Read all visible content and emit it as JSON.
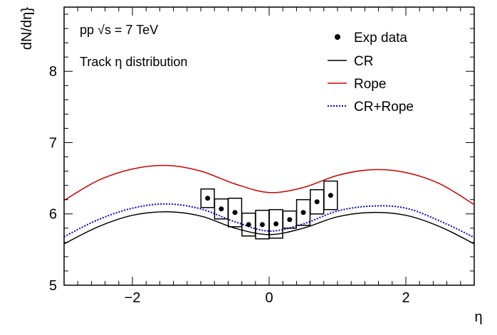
{
  "chart_data": {
    "type": "line",
    "annotations": {
      "line1": "pp  √s = 7 TeV",
      "line2": "Track η distribution"
    },
    "xlabel": "η",
    "ylabel": "dN/dη}",
    "xlim": [
      -3,
      3
    ],
    "ylim": [
      5,
      8.9
    ],
    "grid": false,
    "legend_position": "top-right",
    "x_tick_labels": [
      "−2",
      "0",
      "2"
    ],
    "y_tick_labels": [
      "5",
      "6",
      "7",
      "8"
    ],
    "series": [
      {
        "name": "CR",
        "color": "#000000",
        "style": "solid",
        "x": [
          -3.0,
          -2.5,
          -2.0,
          -1.5,
          -1.0,
          -0.5,
          0.0,
          0.5,
          1.0,
          1.5,
          2.0,
          2.5,
          3.0
        ],
        "y": [
          5.58,
          5.82,
          5.98,
          6.03,
          5.97,
          5.8,
          5.71,
          5.8,
          5.96,
          6.02,
          5.98,
          5.82,
          5.58
        ]
      },
      {
        "name": "Rope",
        "color": "#cc0000",
        "style": "solid",
        "x": [
          -3.0,
          -2.5,
          -2.0,
          -1.5,
          -1.0,
          -0.5,
          0.0,
          0.5,
          1.0,
          1.5,
          2.0,
          2.5,
          3.0
        ],
        "y": [
          6.19,
          6.47,
          6.63,
          6.68,
          6.6,
          6.42,
          6.3,
          6.37,
          6.54,
          6.62,
          6.58,
          6.42,
          6.13
        ]
      },
      {
        "name": "CR+Rope",
        "color": "#0000cc",
        "style": "dotted",
        "x": [
          -3.0,
          -2.5,
          -2.0,
          -1.5,
          -1.0,
          -0.5,
          0.0,
          0.5,
          1.0,
          1.5,
          2.0,
          2.5,
          3.0
        ],
        "y": [
          5.68,
          5.92,
          6.08,
          6.14,
          6.07,
          5.89,
          5.76,
          5.86,
          6.04,
          6.11,
          6.08,
          5.9,
          5.67
        ]
      }
    ],
    "data_points": {
      "name": "Exp data",
      "color": "#000000",
      "x": [
        -0.9,
        -0.7,
        -0.5,
        -0.3,
        -0.1,
        0.1,
        0.3,
        0.5,
        0.7,
        0.9
      ],
      "y": [
        6.22,
        6.07,
        6.02,
        5.85,
        5.85,
        5.86,
        5.92,
        6.02,
        6.17,
        6.26
      ],
      "sys_err": [
        0.13,
        0.14,
        0.2,
        0.16,
        0.2,
        0.2,
        0.12,
        0.18,
        0.17,
        0.2
      ]
    }
  }
}
